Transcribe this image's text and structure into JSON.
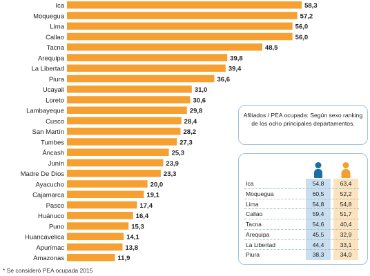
{
  "chart_data": [
    {
      "type": "bar",
      "orientation": "horizontal",
      "categories": [
        "Ica",
        "Moquegua",
        "Lima",
        "Callao",
        "Tacna",
        "Arequipa",
        "La Libertad",
        "Piura",
        "Ucayali",
        "Loreto",
        "Lambayeque",
        "Cusco",
        "San Martín",
        "Tumbes",
        "Áncash",
        "Junín",
        "Madre De Dios",
        "Ayacucho",
        "Cajamarca",
        "Pasco",
        "Huánuco",
        "Puno",
        "Huancavelica",
        "Apurímac",
        "Amazonas"
      ],
      "values": [
        58.3,
        57.2,
        56.0,
        56.0,
        48.5,
        39.8,
        39.4,
        36.6,
        31.0,
        30.6,
        29.8,
        28.4,
        28.2,
        27.3,
        25.3,
        23.9,
        23.3,
        20.0,
        19.1,
        17.4,
        16.4,
        15.3,
        14.1,
        13.8,
        11.9
      ],
      "value_labels": [
        "58,3",
        "57,2",
        "56,0",
        "56,0",
        "48,5",
        "39,8",
        "39,4",
        "36,6",
        "31,0",
        "30,6",
        "29,8",
        "28,4",
        "28,2",
        "27,3",
        "25,3",
        "23,9",
        "23,3",
        "20,0",
        "19,1",
        "17,4",
        "16,4",
        "15,3",
        "14,1",
        "13,8",
        "11,9"
      ],
      "bar_color": "#f5a031",
      "xlim": [
        0,
        60
      ],
      "grid": false,
      "legend": "none"
    },
    {
      "type": "table",
      "title": "Afiliados  / PEA ocupada: Según sexo ranking de los ocho principales departamentos.",
      "rows": [
        {
          "name": "Ica",
          "male": "54,8",
          "female": "63,4"
        },
        {
          "name": "Moquegua",
          "male": "60,5",
          "female": "52,2"
        },
        {
          "name": "Lima",
          "male": "54,8",
          "female": "54,8"
        },
        {
          "name": "Callao",
          "male": "59,4",
          "female": "51,7"
        },
        {
          "name": "Tacna",
          "male": "54,6",
          "female": "40,4"
        },
        {
          "name": "Arequipa",
          "male": "45,5",
          "female": "32,9"
        },
        {
          "name": "La Libertad",
          "male": "44,4",
          "female": "33,1"
        },
        {
          "name": "Piura",
          "male": "38,3",
          "female": "34,0"
        }
      ],
      "male_color": "#1c6fa5",
      "female_color": "#f3a02f"
    }
  ],
  "footnote": "* Se consideró PEA ocupada 2015"
}
